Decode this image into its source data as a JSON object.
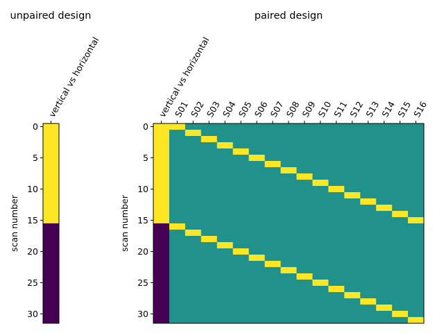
{
  "chart_data": [
    {
      "type": "heatmap",
      "title": "unpaired design",
      "ylabel": "scan number",
      "columns": [
        "vertical vs horizontal"
      ],
      "yticks": [
        0,
        5,
        10,
        15,
        20,
        25,
        30
      ],
      "ylim": [
        31.5,
        -0.5
      ],
      "rows": 32,
      "column_values": {
        "vertical vs horizontal": {
          "first_16": 1,
          "last_16": -1
        }
      },
      "colormap": "viridis",
      "colors": {
        "high": "#fde725",
        "mid": "#21918c",
        "low": "#440154"
      }
    },
    {
      "type": "heatmap",
      "title": "paired design",
      "ylabel": "scan number",
      "columns": [
        "vertical vs horizontal",
        "S01",
        "S02",
        "S03",
        "S04",
        "S05",
        "S06",
        "S07",
        "S08",
        "S09",
        "S10",
        "S11",
        "S12",
        "S13",
        "S14",
        "S15",
        "S16"
      ],
      "yticks": [
        0,
        5,
        10,
        15,
        20,
        25,
        30
      ],
      "ylim": [
        31.5,
        -0.5
      ],
      "rows": 32,
      "subject_pattern": "column S(k) = 1 at scans k-1 and k+15, 0 elsewhere",
      "colormap": "viridis",
      "colors": {
        "high": "#fde725",
        "mid": "#21918c",
        "low": "#440154"
      }
    }
  ]
}
